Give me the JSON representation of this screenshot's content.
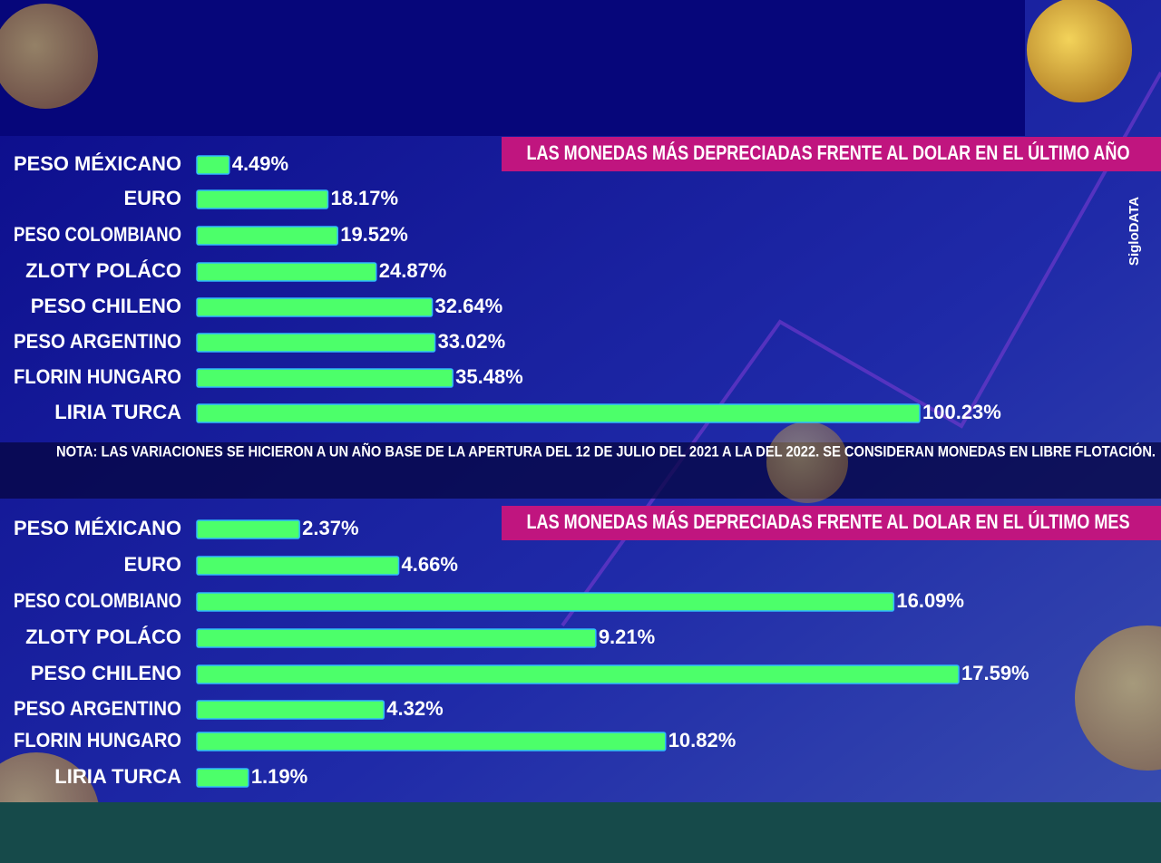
{
  "chart_data": [
    {
      "type": "bar",
      "orientation": "horizontal",
      "title": "LAS MONEDAS MÁS DEPRECIADAS FRENTE AL DOLAR EN EL ÚLTIMO AÑO",
      "categories": [
        "PESO MÉXICANO",
        "EURO",
        "PESO COLOMBIANO",
        "ZLOTY POLÁCO",
        "PESO CHILENO",
        "PESO ARGENTINO",
        "FLORIN HUNGARO",
        "LIRIA TURCA"
      ],
      "values": [
        4.49,
        18.17,
        19.52,
        24.87,
        32.64,
        33.02,
        35.48,
        100.23
      ],
      "value_labels": [
        "4.49%",
        "18.17%",
        "19.52%",
        "24.87%",
        "32.64%",
        "33.02%",
        "35.48%",
        "100.23%"
      ],
      "color": "#4cff6a",
      "note": "NOTA: LAS VARIACIONES SE HICIERON A UN AÑO BASE DE LA APERTURA DEL 12 DE JULIO DEL 2021 A LA DEL 2022. SE CONSIDERAN MONEDAS EN LIBRE FLOTACIÓN."
    },
    {
      "type": "bar",
      "orientation": "horizontal",
      "title": "LAS MONEDAS MÁS DEPRECIADAS FRENTE AL DOLAR EN EL ÚLTIMO MES",
      "categories": [
        "PESO MÉXICANO",
        "EURO",
        "PESO COLOMBIANO",
        "ZLOTY POLÁCO",
        "PESO CHILENO",
        "PESO ARGENTINO",
        "FLORIN HUNGARO",
        "LIRIA TURCA"
      ],
      "values": [
        2.37,
        4.66,
        16.09,
        9.21,
        17.59,
        4.32,
        10.82,
        1.19
      ],
      "value_labels": [
        "2.37%",
        "4.66%",
        "16.09%",
        "9.21%",
        "17.59%",
        "4.32%",
        "10.82%",
        "1.19%"
      ],
      "color": "#4cff6a"
    }
  ],
  "credit": "SigloDATA"
}
